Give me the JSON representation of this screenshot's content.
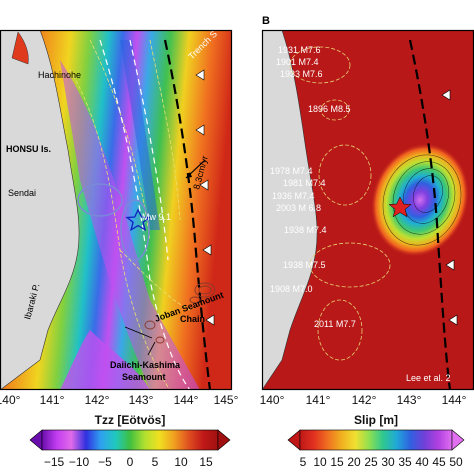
{
  "panel_a": {
    "places": {
      "hachinohe": "Hachinohe",
      "honsu": "HONSU Is.",
      "sendai": "Sendai",
      "ibaraki": "Ibaraki P."
    },
    "features": {
      "japan_trench": "Trench S",
      "rate": "8.3cm/yr",
      "event": "Mw 9.1",
      "joban_1": "Joban Seamount",
      "joban_2": "Chain",
      "daiichi_1": "Daiichi-Kashima",
      "daiichi_2": "Seamount"
    },
    "lon_ticks": [
      "140°",
      "141°",
      "142°",
      "143°",
      "144°",
      "145°"
    ],
    "colorbar": {
      "label": "Tzz [Eötvös]",
      "ticks": [
        "−15",
        "−10",
        "−5",
        "0",
        "5",
        "10",
        "15"
      ],
      "colors": [
        "#6a0dad",
        "#c03cf0",
        "#e06be8",
        "#3030e0",
        "#30a0f0",
        "#20c8c0",
        "#40c040",
        "#b0e030",
        "#f0e020",
        "#f0a020",
        "#e05020",
        "#c01818",
        "#a01010"
      ]
    }
  },
  "panel_b": {
    "panel_letter": "B",
    "historic_quakes": [
      "1931 M7.6",
      "1901 M7.4",
      "1933 M7.6",
      "1896 M8.5",
      "1978 M7.4",
      "1981 M7.4",
      "1936 M7.4",
      "2003 M 6.8",
      "1938 M7.4",
      "1938 M7.5",
      "1908 M7.0",
      "2011 M7.7"
    ],
    "credit": "Lee et al. 2",
    "lon_ticks": [
      "140°",
      "141°",
      "142°",
      "143°",
      "144°"
    ],
    "colorbar": {
      "label": "Slip [m]",
      "ticks": [
        "5",
        "10",
        "15",
        "20",
        "25",
        "30",
        "35",
        "40",
        "45",
        "50"
      ],
      "colors": [
        "#c01818",
        "#e03020",
        "#f07020",
        "#f0b020",
        "#f0e030",
        "#90e050",
        "#30c890",
        "#20a8d8",
        "#3060e0",
        "#7040d8",
        "#b040e0",
        "#e070f0"
      ]
    }
  }
}
